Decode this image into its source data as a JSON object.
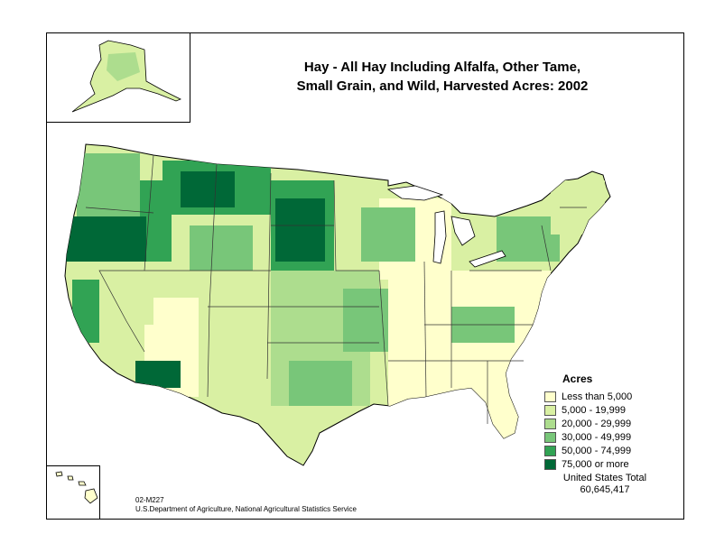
{
  "title": {
    "line1": "Hay - All Hay Including Alfalfa, Other Tame,",
    "line2": "Small Grain, and Wild, Harvested Acres:  2002"
  },
  "legend": {
    "title": "Acres",
    "items": [
      {
        "label": "Less than 5,000",
        "color": "#ffffcc"
      },
      {
        "label": "5,000 - 19,999",
        "color": "#d9f0a3"
      },
      {
        "label": "20,000 - 29,999",
        "color": "#addd8e"
      },
      {
        "label": "30,000 - 49,999",
        "color": "#78c679"
      },
      {
        "label": "50,000 - 74,999",
        "color": "#31a354"
      },
      {
        "label": "75,000 or more",
        "color": "#006837"
      }
    ]
  },
  "total": {
    "label": "United States Total",
    "value": "60,645,417"
  },
  "credit": {
    "map_id": "02-M227",
    "source": "U.S.Department of Agriculture, National Agricultural Statistics Service"
  },
  "colors": {
    "border": "#000000",
    "state_line": "#333333",
    "lake": "#ffffff"
  }
}
